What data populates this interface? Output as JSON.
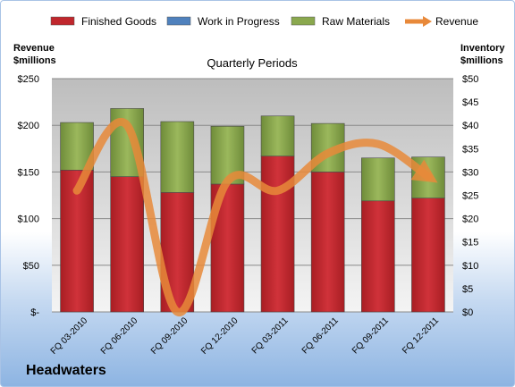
{
  "chart_data": {
    "type": "bar",
    "subtitle": "Quarterly Periods",
    "company": "Headwaters",
    "left_axis": {
      "label_line1": "Revenue",
      "label_line2": "$millions",
      "range": [
        0,
        250
      ],
      "step": 50,
      "tick_labels": [
        "$-",
        "$50",
        "$100",
        "$150",
        "$200",
        "$250"
      ]
    },
    "right_axis": {
      "label_line1": "Inventory",
      "label_line2": "$millions",
      "range": [
        0,
        50
      ],
      "step": 5,
      "tick_labels": [
        "$0",
        "$5",
        "$10",
        "$15",
        "$20",
        "$25",
        "$30",
        "$35",
        "$40",
        "$45",
        "$50"
      ]
    },
    "categories": [
      "FQ 03-2010",
      "FQ 06-2010",
      "FQ 09-2010",
      "FQ 12-2010",
      "FQ 03-2011",
      "FQ 06-2011",
      "FQ 09-2011",
      "FQ 12-2011"
    ],
    "stacked_series": [
      {
        "name": "Finished Goods",
        "color": "#c0272d",
        "axis": "left",
        "values": [
          152,
          145,
          128,
          137,
          167,
          150,
          119,
          122
        ]
      },
      {
        "name": "Work in Progress",
        "color": "#4f81bd",
        "axis": "left",
        "values": [
          0,
          0,
          0,
          0,
          0,
          0,
          0,
          0
        ]
      },
      {
        "name": "Raw Materials",
        "color": "#8aa84e",
        "axis": "left",
        "values": [
          51,
          73,
          76,
          62,
          43,
          52,
          46,
          44
        ]
      }
    ],
    "line_series": {
      "name": "Revenue",
      "color": "#e8893a",
      "axis": "right",
      "values": [
        26,
        40,
        0,
        28,
        26,
        34,
        36,
        29
      ]
    },
    "grid": true,
    "legend": "top"
  }
}
